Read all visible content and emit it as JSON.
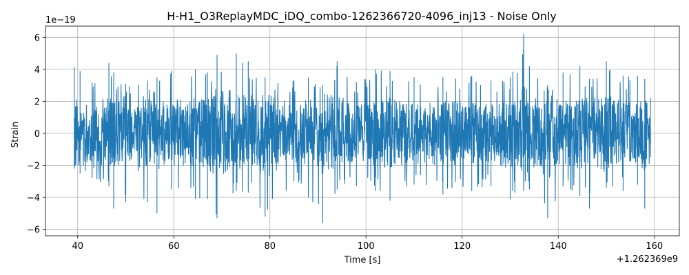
{
  "chart_data": {
    "type": "line",
    "title": "H-H1_O3ReplayMDC_iDQ_combo-1262366720-4096_inj13 - Noise Only",
    "xlabel": "Time [s]",
    "ylabel": "Strain",
    "x_offset_label": "+1.262369e9",
    "y_scale_label": "1e−19",
    "x_range": [
      39.3,
      159.2
    ],
    "xlim": [
      33.3,
      165.2
    ],
    "ylim": [
      -6.4,
      6.7
    ],
    "x_ticks": [
      40,
      60,
      80,
      100,
      120,
      140,
      160
    ],
    "x_tick_labels": [
      "40",
      "60",
      "80",
      "100",
      "120",
      "140",
      "160"
    ],
    "y_ticks": [
      -6,
      -4,
      -2,
      0,
      2,
      4,
      6
    ],
    "y_tick_labels": [
      "−6",
      "−4",
      "−2",
      "0",
      "2",
      "4",
      "6"
    ],
    "grid": true,
    "series": [
      {
        "color": "#1f77b4",
        "envelope_points": [
          {
            "x": 39.3,
            "max": 4.15,
            "min": -2.2
          },
          {
            "x": 40.5,
            "max": 3.9,
            "min": -2.5
          },
          {
            "x": 43,
            "max": 3.2,
            "min": -2.8
          },
          {
            "x": 46.5,
            "max": 4.4,
            "min": -3.3
          },
          {
            "x": 47.5,
            "max": 3.8,
            "min": -4.7
          },
          {
            "x": 50,
            "max": 3.1,
            "min": -4.3
          },
          {
            "x": 54.5,
            "max": 3.3,
            "min": -4.3
          },
          {
            "x": 56.5,
            "max": 3.5,
            "min": -5.0
          },
          {
            "x": 59.5,
            "max": 3.9,
            "min": -3.5
          },
          {
            "x": 64.5,
            "max": 4.0,
            "min": -4.1
          },
          {
            "x": 67,
            "max": 3.8,
            "min": -4.1
          },
          {
            "x": 69,
            "max": 4.9,
            "min": -5.3
          },
          {
            "x": 73,
            "max": 5.0,
            "min": -3.6
          },
          {
            "x": 75.5,
            "max": 4.5,
            "min": -3.7
          },
          {
            "x": 79,
            "max": 3.5,
            "min": -5.2
          },
          {
            "x": 85,
            "max": 3.3,
            "min": -3.0
          },
          {
            "x": 88,
            "max": 3.5,
            "min": -4.0
          },
          {
            "x": 91,
            "max": 3.0,
            "min": -5.6
          },
          {
            "x": 94,
            "max": 4.5,
            "min": -3.5
          },
          {
            "x": 98,
            "max": 3.2,
            "min": -3.3
          },
          {
            "x": 102,
            "max": 4.0,
            "min": -3.6
          },
          {
            "x": 105,
            "max": 3.9,
            "min": -4.2
          },
          {
            "x": 110,
            "max": 3.5,
            "min": -3.2
          },
          {
            "x": 116,
            "max": 3.5,
            "min": -3.8
          },
          {
            "x": 122,
            "max": 3.6,
            "min": -3.6
          },
          {
            "x": 126,
            "max": 3.3,
            "min": -3.3
          },
          {
            "x": 130,
            "max": 3.5,
            "min": -4.1
          },
          {
            "x": 132.8,
            "max": 6.2,
            "min": -3.6
          },
          {
            "x": 134,
            "max": 4.2,
            "min": -3.5
          },
          {
            "x": 137.8,
            "max": 3.0,
            "min": -5.3
          },
          {
            "x": 141,
            "max": 3.8,
            "min": -3.3
          },
          {
            "x": 144.5,
            "max": 4.2,
            "min": -3.9
          },
          {
            "x": 146.5,
            "max": 3.4,
            "min": -4.7
          },
          {
            "x": 150,
            "max": 4.5,
            "min": -3.4
          },
          {
            "x": 153.5,
            "max": 3.6,
            "min": -3.6
          },
          {
            "x": 156.5,
            "max": 3.6,
            "min": -3.2
          },
          {
            "x": 158,
            "max": 3.4,
            "min": -4.7
          },
          {
            "x": 159.2,
            "max": 2.2,
            "min": -1.5
          }
        ]
      }
    ]
  }
}
